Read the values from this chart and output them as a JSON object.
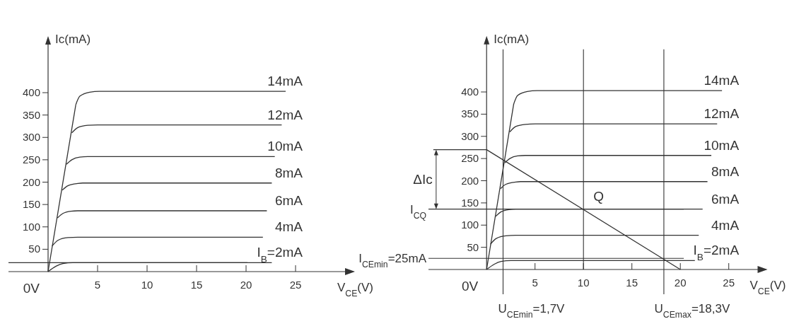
{
  "chart_data": [
    {
      "type": "line",
      "ylabel": "Ic(mA)",
      "xlabel": "V$_{CE}$(V)",
      "xlim": [
        -4,
        31
      ],
      "ylim": [
        0,
        520
      ],
      "xticks": [
        5,
        10,
        15,
        20,
        25
      ],
      "yticks": [
        50,
        100,
        150,
        200,
        250,
        300,
        350,
        400
      ],
      "grid": false,
      "legend": false,
      "line_style": "solid",
      "marker": "none",
      "series": [
        {
          "name": "I$_{B}$=2mA",
          "color": "#333333",
          "x": [
            0,
            0.8,
            1.5,
            2.5,
            22.6
          ],
          "values": [
            0,
            12,
            18,
            20,
            20
          ]
        },
        {
          "name": "4mA",
          "color": "#333333",
          "x": [
            0.4,
            1,
            2,
            3,
            21.7
          ],
          "values": [
            57,
            70,
            76,
            77,
            77
          ]
        },
        {
          "name": "6mA",
          "color": "#333333",
          "x": [
            0.95,
            1.5,
            2.3,
            3,
            22.1
          ],
          "values": [
            120,
            130,
            135,
            136,
            136
          ]
        },
        {
          "name": "8mA",
          "color": "#333333",
          "x": [
            1.43,
            2,
            3,
            3.5,
            22.6
          ],
          "values": [
            182,
            192,
            197,
            198,
            198
          ]
        },
        {
          "name": "10mA",
          "color": "#333333",
          "x": [
            1.86,
            2.4,
            3.2,
            4,
            22.9
          ],
          "values": [
            240,
            250,
            256,
            257,
            257
          ]
        },
        {
          "name": "12mA",
          "color": "#333333",
          "x": [
            2.4,
            3,
            4,
            5,
            23.6
          ],
          "values": [
            310,
            322,
            327,
            328,
            328
          ]
        },
        {
          "name": "14mA",
          "color": "#333333",
          "x": [
            2.8,
            3.2,
            4.2,
            5.2,
            24
          ],
          "values": [
            373,
            392,
            401,
            403,
            403
          ]
        },
        {
          "color": "#333333",
          "x": [
            0,
            2.8
          ],
          "values": [
            0,
            373
          ]
        }
      ],
      "ref_lines": [
        {
          "axis": "y",
          "value": 20,
          "label": null,
          "color": "#333333"
        }
      ],
      "annotations": [
        "0V"
      ]
    },
    {
      "type": "line",
      "ylabel": "Ic(mA)",
      "xlabel": "V$_{CE}$(V)",
      "xlim": [
        -6,
        29
      ],
      "ylim": [
        0,
        520
      ],
      "xticks": [
        5,
        10,
        15,
        20,
        25
      ],
      "yticks": [
        50,
        100,
        150,
        200,
        250,
        300,
        350,
        400
      ],
      "grid": false,
      "legend": false,
      "line_style": "solid",
      "marker": "none",
      "series": [
        {
          "name": "I$_{B}$=2mA",
          "color": "#333333",
          "x": [
            0,
            0.8,
            1.5,
            2.5,
            21.5
          ],
          "values": [
            0,
            12,
            18,
            20,
            20
          ]
        },
        {
          "name": "4mA",
          "color": "#333333",
          "x": [
            0.4,
            1,
            2,
            3,
            21.9
          ],
          "values": [
            57,
            70,
            76,
            77,
            77
          ]
        },
        {
          "name": "6mA",
          "color": "#333333",
          "x": [
            0.95,
            1.5,
            2.3,
            3,
            22.3
          ],
          "values": [
            120,
            130,
            135,
            136,
            136
          ]
        },
        {
          "name": "8mA",
          "color": "#333333",
          "x": [
            1.43,
            2,
            3,
            3.5,
            22.8
          ],
          "values": [
            182,
            192,
            197,
            198,
            198
          ]
        },
        {
          "name": "10mA",
          "color": "#333333",
          "x": [
            1.86,
            2.4,
            3.2,
            4,
            23.2
          ],
          "values": [
            240,
            250,
            256,
            257,
            257
          ]
        },
        {
          "name": "12mA",
          "color": "#333333",
          "x": [
            2.4,
            3,
            4,
            5,
            23.8
          ],
          "values": [
            310,
            322,
            327,
            328,
            328
          ]
        },
        {
          "name": "14mA",
          "color": "#333333",
          "x": [
            2.8,
            3.2,
            4.2,
            5.2,
            24.3
          ],
          "values": [
            373,
            392,
            401,
            403,
            403
          ]
        },
        {
          "color": "#333333",
          "x": [
            0,
            2.8
          ],
          "values": [
            0,
            373
          ]
        },
        {
          "color": "#333333",
          "x": [
            -5.5,
            0,
            20
          ],
          "values": [
            270,
            270,
            0
          ]
        }
      ],
      "ref_lines": [
        {
          "axis": "y",
          "value": 25,
          "label": "I$_{CEmin}$=25mA",
          "color": "#333333"
        },
        {
          "axis": "y",
          "value": 136,
          "label": "I$_{CQ}$",
          "color": "#333333"
        },
        {
          "axis": "x",
          "value": 1.7,
          "label": "U$_{CEmin}$=1,7V",
          "color": "#333333"
        },
        {
          "axis": "x",
          "value": 10,
          "label": null,
          "color": "#333333"
        },
        {
          "axis": "x",
          "value": 18.3,
          "label": "U$_{CEmax}$=18,3V",
          "color": "#333333"
        }
      ],
      "annotations": [
        {
          "text": "Q",
          "x": 10,
          "y": 136
        },
        "ΔIc",
        "0V"
      ]
    }
  ]
}
